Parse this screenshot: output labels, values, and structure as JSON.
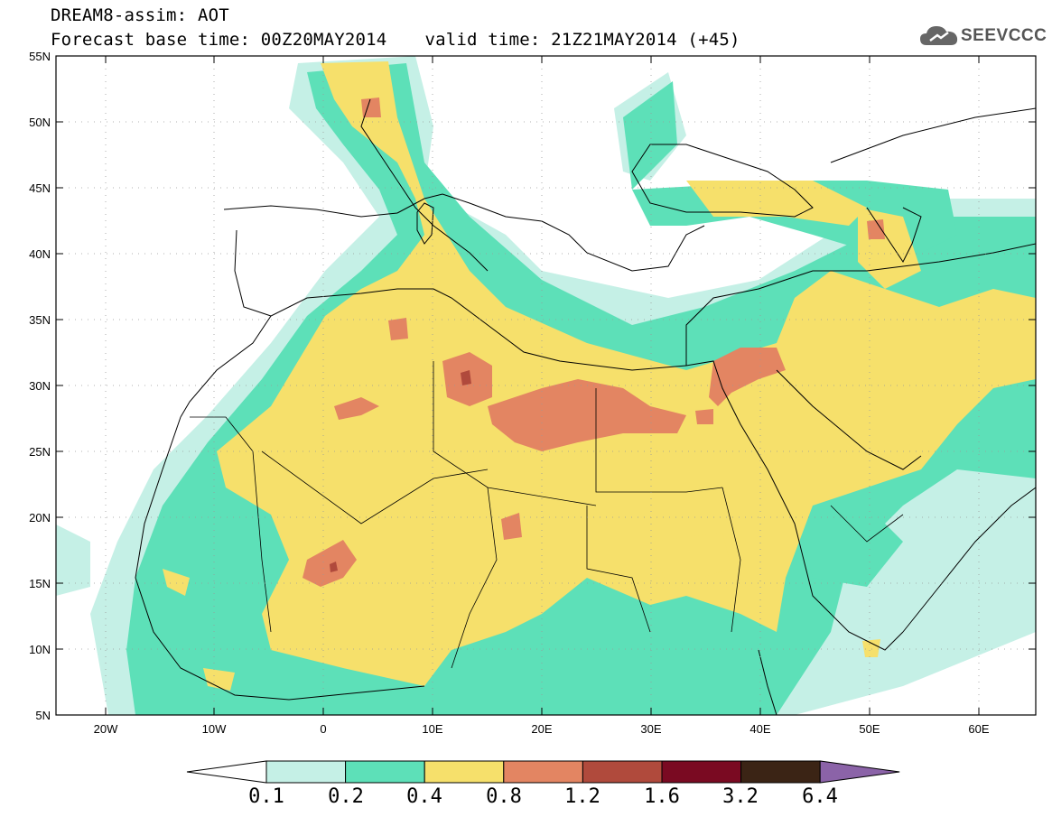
{
  "header": {
    "line1": "DREAM8-assim: AOT",
    "base_time": "Forecast base time: 00Z20MAY2014",
    "valid_time": "valid time: 21Z21MAY2014 (+45)",
    "logo_text": "SEEVCCC"
  },
  "map": {
    "projection": "lat-lon",
    "lon_range": [
      -25,
      65
    ],
    "lat_range": [
      5,
      55
    ],
    "lat_ticks": [
      "5N",
      "10N",
      "15N",
      "20N",
      "25N",
      "30N",
      "35N",
      "40N",
      "45N",
      "50N",
      "55N"
    ],
    "lon_ticks": [
      "20W",
      "10W",
      "0",
      "10E",
      "20E",
      "30E",
      "40E",
      "50E",
      "60E"
    ],
    "background_color": "#ffffff",
    "coast_color": "#000000"
  },
  "colorbar": {
    "labels": [
      "0.1",
      "0.2",
      "0.4",
      "0.8",
      "1.2",
      "1.6",
      "3.2",
      "6.4"
    ],
    "colors": [
      "#ffffff",
      "#c5f0e6",
      "#5de0b8",
      "#f6e06b",
      "#e38562",
      "#b04a3c",
      "#7a0a22",
      "#3b2415",
      "#8b63a8"
    ]
  }
}
